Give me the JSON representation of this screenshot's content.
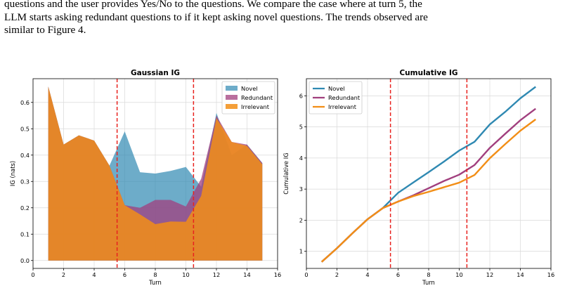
{
  "caption": {
    "line1": "questions and the user provides Yes/No to the questions. We compare the case where at turn 5, the",
    "line2": "LLM starts asking redundant questions to if it kept asking novel questions. The trends observed are",
    "line3": "similar to Figure 4."
  },
  "colors": {
    "novel": "#2f89b2",
    "redundant": "#a13f7e",
    "irrelevant": "#f28e16",
    "vline": "#e8221f",
    "grid": "#d9d9d9"
  },
  "chart_data": [
    {
      "type": "area",
      "title": "Gaussian IG",
      "xlabel": "Turn",
      "ylabel": "IG (nats)",
      "xlim": [
        0,
        16
      ],
      "ylim": [
        -0.03,
        0.69
      ],
      "xticks": [
        0,
        2,
        4,
        6,
        8,
        10,
        12,
        14,
        16
      ],
      "yticks": [
        0.0,
        0.1,
        0.2,
        0.3,
        0.4,
        0.5,
        0.6
      ],
      "ytick_labels": [
        "0.0",
        "0.1",
        "0.2",
        "0.3",
        "0.4",
        "0.5",
        "0.6"
      ],
      "grid": true,
      "legend_position": "top-right",
      "vlines": [
        5.5,
        10.5
      ],
      "x": [
        1,
        2,
        3,
        4,
        5,
        6,
        7,
        8,
        9,
        10,
        11,
        12,
        13,
        14,
        15
      ],
      "series": [
        {
          "name": "Novel",
          "color_key": "novel",
          "opacity": 0.7,
          "values": [
            0.66,
            0.44,
            0.475,
            0.455,
            0.36,
            0.49,
            0.335,
            0.33,
            0.34,
            0.355,
            0.28,
            0.56,
            0.4,
            0.44,
            0.37
          ]
        },
        {
          "name": "Redundant",
          "color_key": "redundant",
          "opacity": 0.75,
          "values": [
            0.66,
            0.44,
            0.475,
            0.455,
            0.36,
            0.21,
            0.2,
            0.23,
            0.23,
            0.205,
            0.31,
            0.55,
            0.45,
            0.44,
            0.37
          ]
        },
        {
          "name": "Irrelevant",
          "color_key": "irrelevant",
          "opacity": 0.85,
          "values": [
            0.66,
            0.44,
            0.475,
            0.455,
            0.36,
            0.21,
            0.175,
            0.138,
            0.148,
            0.147,
            0.245,
            0.54,
            0.45,
            0.435,
            0.365
          ]
        }
      ]
    },
    {
      "type": "line",
      "title": "Cumulative IG",
      "xlabel": "Turn",
      "ylabel": "Cumulative IG",
      "xlim": [
        0,
        16
      ],
      "ylim": [
        0.45,
        6.55
      ],
      "xticks": [
        0,
        2,
        4,
        6,
        8,
        10,
        12,
        14,
        16
      ],
      "yticks": [
        1,
        2,
        3,
        4,
        5,
        6
      ],
      "ytick_labels": [
        "1",
        "2",
        "3",
        "4",
        "5",
        "6"
      ],
      "grid": true,
      "legend_position": "top-left",
      "vlines": [
        5.5,
        10.5
      ],
      "x": [
        1,
        2,
        3,
        4,
        5,
        6,
        7,
        8,
        9,
        10,
        11,
        12,
        13,
        14,
        15
      ],
      "series": [
        {
          "name": "Novel",
          "color_key": "novel",
          "values": [
            0.66,
            1.1,
            1.575,
            2.03,
            2.39,
            2.88,
            3.215,
            3.545,
            3.885,
            4.24,
            4.52,
            5.08,
            5.48,
            5.92,
            6.29
          ]
        },
        {
          "name": "Redundant",
          "color_key": "redundant",
          "values": [
            0.66,
            1.1,
            1.575,
            2.03,
            2.39,
            2.6,
            2.8,
            3.03,
            3.26,
            3.465,
            3.775,
            4.325,
            4.775,
            5.215,
            5.585
          ]
        },
        {
          "name": "Irrelevant",
          "color_key": "irrelevant",
          "values": [
            0.66,
            1.1,
            1.575,
            2.03,
            2.39,
            2.6,
            2.775,
            2.913,
            3.061,
            3.208,
            3.453,
            3.993,
            4.443,
            4.878,
            5.243
          ]
        }
      ]
    }
  ]
}
